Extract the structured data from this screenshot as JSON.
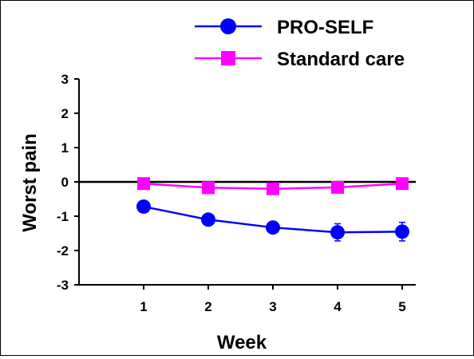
{
  "chart_data": {
    "type": "line",
    "xlabel": "Week",
    "ylabel": "Worst pain",
    "categories": [
      "1",
      "2",
      "3",
      "4",
      "5"
    ],
    "x": [
      1,
      2,
      3,
      4,
      5
    ],
    "xlim": [
      0,
      5.2
    ],
    "ylim": [
      -3,
      3
    ],
    "yticks": [
      "3",
      "2",
      "1",
      "0",
      "-1",
      "-2",
      "-3"
    ],
    "grid": false,
    "legend_position": "top-right",
    "reference_line_y": 0,
    "series": [
      {
        "name": "PRO-SELF",
        "color": "#0000FF",
        "marker": "circle",
        "values": [
          -0.72,
          -1.1,
          -1.33,
          -1.47,
          -1.45
        ],
        "error": [
          0.1,
          0.12,
          0.12,
          0.25,
          0.27
        ]
      },
      {
        "name": "Standard care",
        "color": "#FF00FF",
        "marker": "square",
        "values": [
          -0.05,
          -0.17,
          -0.2,
          -0.16,
          -0.05
        ],
        "error": [
          0.05,
          0.05,
          0.05,
          0.1,
          0.1
        ]
      }
    ]
  }
}
